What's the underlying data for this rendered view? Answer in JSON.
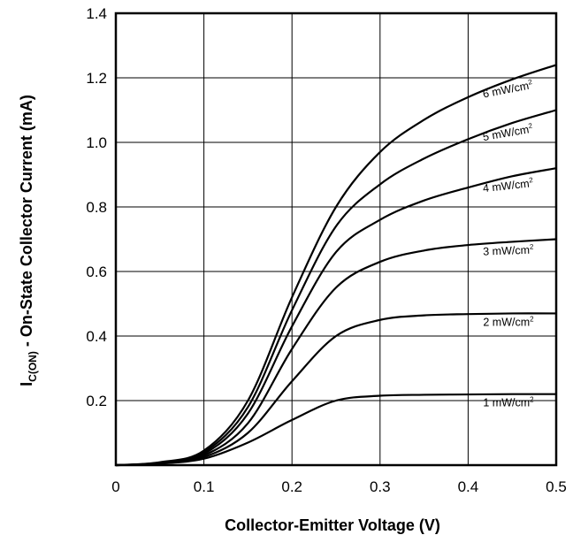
{
  "chart_data": {
    "type": "line",
    "title": "",
    "xlabel": "Collector-Emitter Voltage (V)",
    "ylabel": {
      "main": "I",
      "sub": "C(ON)",
      "rest": " - On-State Collector Current (mA)"
    },
    "xlim": [
      0,
      0.5
    ],
    "ylim": [
      0,
      1.4
    ],
    "xticks": [
      0,
      0.1,
      0.2,
      0.3,
      0.4,
      0.5
    ],
    "xtick_labels": [
      "0",
      "0.1",
      "0.2",
      "0.3",
      "0.4",
      "0.5"
    ],
    "yticks": [
      0.2,
      0.4,
      0.6,
      0.8,
      1.0,
      1.2,
      1.4
    ],
    "ytick_labels": [
      "0.2",
      "0.4",
      "0.6",
      "0.8",
      "1.0",
      "1.2",
      "1.4"
    ],
    "grid": true,
    "series": [
      {
        "name": "1 mW/cm2",
        "label_main": "1 mW/cm",
        "label_sup": "2",
        "x": [
          0,
          0.05,
          0.1,
          0.15,
          0.2,
          0.25,
          0.3,
          0.35,
          0.4,
          0.45,
          0.5
        ],
        "y": [
          0,
          0.005,
          0.02,
          0.07,
          0.14,
          0.2,
          0.215,
          0.218,
          0.219,
          0.22,
          0.22
        ]
      },
      {
        "name": "2 mW/cm2",
        "label_main": "2 mW/cm",
        "label_sup": "2",
        "x": [
          0,
          0.05,
          0.1,
          0.15,
          0.2,
          0.25,
          0.3,
          0.35,
          0.4,
          0.45,
          0.5
        ],
        "y": [
          0,
          0.005,
          0.025,
          0.1,
          0.26,
          0.4,
          0.45,
          0.464,
          0.468,
          0.47,
          0.47
        ]
      },
      {
        "name": "3 mW/cm2",
        "label_main": "3 mW/cm",
        "label_sup": "2",
        "x": [
          0,
          0.05,
          0.1,
          0.15,
          0.2,
          0.25,
          0.3,
          0.35,
          0.4,
          0.45,
          0.5
        ],
        "y": [
          0,
          0.006,
          0.03,
          0.13,
          0.36,
          0.55,
          0.63,
          0.665,
          0.682,
          0.692,
          0.7
        ]
      },
      {
        "name": "4 mW/cm2",
        "label_main": "4 mW/cm",
        "label_sup": "2",
        "x": [
          0,
          0.05,
          0.1,
          0.15,
          0.2,
          0.25,
          0.3,
          0.35,
          0.4,
          0.45,
          0.5
        ],
        "y": [
          0,
          0.007,
          0.035,
          0.16,
          0.43,
          0.66,
          0.76,
          0.82,
          0.86,
          0.895,
          0.92
        ]
      },
      {
        "name": "5 mW/cm2",
        "label_main": "5 mW/cm",
        "label_sup": "2",
        "x": [
          0,
          0.05,
          0.1,
          0.15,
          0.2,
          0.25,
          0.3,
          0.35,
          0.4,
          0.45,
          0.5
        ],
        "y": [
          0,
          0.008,
          0.04,
          0.18,
          0.48,
          0.74,
          0.87,
          0.95,
          1.01,
          1.06,
          1.1
        ]
      },
      {
        "name": "6 mW/cm2",
        "label_main": "6 mW/cm",
        "label_sup": "2",
        "x": [
          0,
          0.05,
          0.1,
          0.15,
          0.2,
          0.25,
          0.3,
          0.35,
          0.4,
          0.45,
          0.5
        ],
        "y": [
          0,
          0.009,
          0.045,
          0.2,
          0.52,
          0.8,
          0.97,
          1.07,
          1.14,
          1.195,
          1.24
        ]
      }
    ]
  }
}
